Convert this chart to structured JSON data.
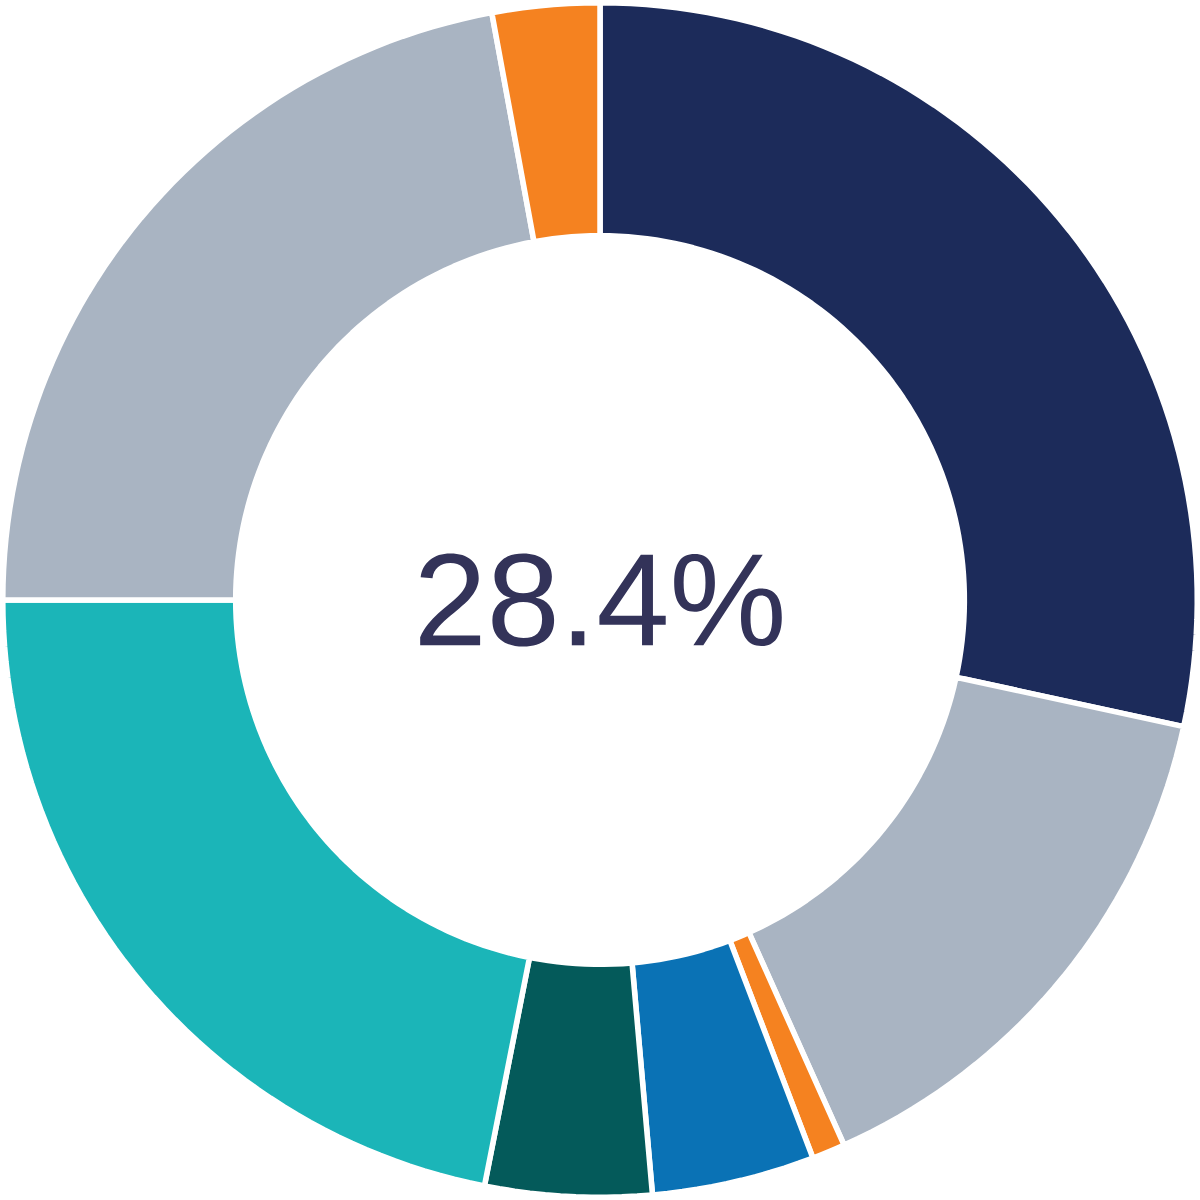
{
  "chart_data": {
    "type": "donut",
    "categories": [
      null,
      null,
      null,
      null,
      null,
      null,
      null,
      null
    ],
    "values": [
      28.4,
      14.9,
      0.9,
      4.4,
      4.5,
      21.9,
      22.1,
      2.9
    ],
    "colors": [
      "#1c2b5a",
      "#a9b4c2",
      "#f58220",
      "#0a72b5",
      "#045a5a",
      "#1bb5b8",
      "#a9b4c2",
      "#f58220"
    ],
    "annotations": [
      "28.4%"
    ]
  }
}
